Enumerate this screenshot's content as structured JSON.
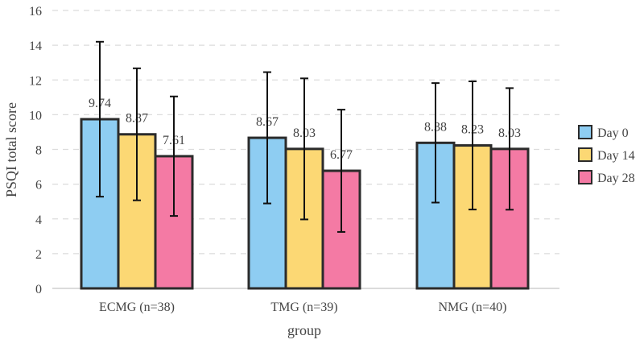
{
  "chart_data": {
    "type": "bar",
    "title": "",
    "xlabel": "group",
    "ylabel": "PSQI total score",
    "ylim": [
      0,
      16
    ],
    "yticks": [
      0,
      2,
      4,
      6,
      8,
      10,
      12,
      14,
      16
    ],
    "grid": "horizontal dashed",
    "legend_position": "right",
    "categories": [
      "ECMG (n=38)",
      "TMG (n=39)",
      "NMG (n=40)"
    ],
    "series": [
      {
        "name": "Day 0",
        "color": "#8ecdf2",
        "values": [
          9.74,
          8.67,
          8.38
        ],
        "labels": [
          "9.74",
          "8.67",
          "8.38"
        ],
        "error": [
          4.46,
          3.78,
          3.44
        ]
      },
      {
        "name": "Day 14",
        "color": "#fcd874",
        "values": [
          8.87,
          8.03,
          8.23
        ],
        "labels": [
          "8.87",
          "8.03",
          "8.23"
        ],
        "error": [
          3.8,
          4.06,
          3.69
        ]
      },
      {
        "name": "Day 28",
        "color": "#f47aa4",
        "values": [
          7.61,
          6.77,
          8.03
        ],
        "labels": [
          "7.61",
          "6.77",
          "8.03"
        ],
        "error": [
          3.44,
          3.52,
          3.5
        ]
      }
    ]
  }
}
